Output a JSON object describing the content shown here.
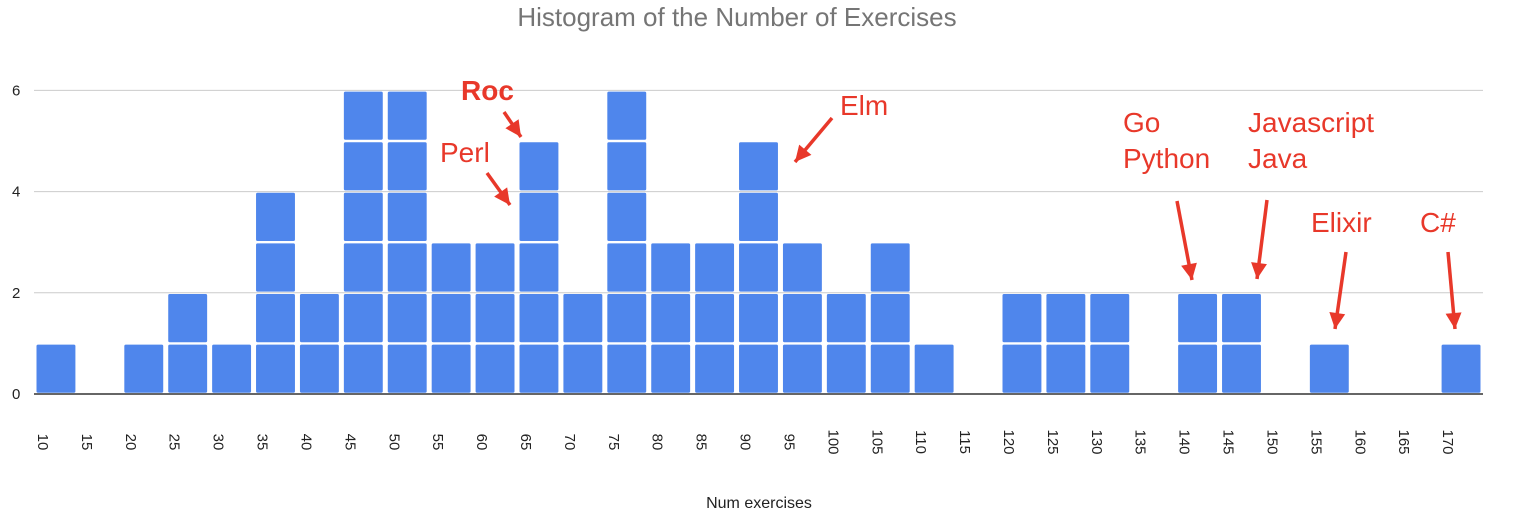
{
  "chart_data": {
    "type": "bar",
    "title": "Histogram of the Number of Exercises",
    "xlabel": "Num exercises",
    "ylabel": "",
    "bin_width": 5,
    "xlim": [
      10,
      170
    ],
    "ylim": [
      0,
      6.5
    ],
    "y_ticks": [
      "0",
      "2",
      "4",
      "6"
    ],
    "x_ticks": [
      "10",
      "15",
      "20",
      "25",
      "30",
      "35",
      "40",
      "45",
      "50",
      "55",
      "60",
      "65",
      "70",
      "75",
      "80",
      "85",
      "90",
      "95",
      "100",
      "105",
      "110",
      "115",
      "120",
      "125",
      "130",
      "135",
      "140",
      "145",
      "150",
      "155",
      "160",
      "165",
      "170"
    ],
    "bins": [
      {
        "start": 10,
        "count": 1
      },
      {
        "start": 15,
        "count": 0
      },
      {
        "start": 20,
        "count": 1
      },
      {
        "start": 25,
        "count": 2
      },
      {
        "start": 30,
        "count": 1
      },
      {
        "start": 35,
        "count": 4
      },
      {
        "start": 40,
        "count": 2
      },
      {
        "start": 45,
        "count": 6
      },
      {
        "start": 50,
        "count": 6
      },
      {
        "start": 55,
        "count": 3
      },
      {
        "start": 60,
        "count": 3
      },
      {
        "start": 65,
        "count": 5
      },
      {
        "start": 70,
        "count": 2
      },
      {
        "start": 75,
        "count": 6
      },
      {
        "start": 80,
        "count": 3
      },
      {
        "start": 85,
        "count": 3
      },
      {
        "start": 90,
        "count": 5
      },
      {
        "start": 95,
        "count": 3
      },
      {
        "start": 100,
        "count": 2
      },
      {
        "start": 105,
        "count": 3
      },
      {
        "start": 110,
        "count": 1
      },
      {
        "start": 115,
        "count": 0
      },
      {
        "start": 120,
        "count": 2
      },
      {
        "start": 125,
        "count": 2
      },
      {
        "start": 130,
        "count": 2
      },
      {
        "start": 135,
        "count": 0
      },
      {
        "start": 140,
        "count": 2
      },
      {
        "start": 145,
        "count": 2
      },
      {
        "start": 150,
        "count": 0
      },
      {
        "start": 155,
        "count": 1
      },
      {
        "start": 160,
        "count": 0
      },
      {
        "start": 165,
        "count": 0
      },
      {
        "start": 170,
        "count": 1
      }
    ],
    "grid": true,
    "legend": "none",
    "bar_color": "#4f86ec",
    "annotations": [
      {
        "lines": [
          "Roc"
        ],
        "bold": true,
        "target_bin": 65,
        "target_count": 5
      },
      {
        "lines": [
          "Perl"
        ],
        "bold": false,
        "target_bin": 65,
        "target_count": 3.8
      },
      {
        "lines": [
          "Elm"
        ],
        "bold": false,
        "target_bin": 90,
        "target_count": 4.5
      },
      {
        "lines": [
          "Go",
          "Python"
        ],
        "bold": false,
        "target_bin": 140,
        "target_count": 2.2
      },
      {
        "lines": [
          "Javascript",
          "Java"
        ],
        "bold": false,
        "target_bin": 145,
        "target_count": 2.2
      },
      {
        "lines": [
          "Elixir"
        ],
        "bold": false,
        "target_bin": 155,
        "target_count": 1.2
      },
      {
        "lines": [
          "C#"
        ],
        "bold": false,
        "target_bin": 170,
        "target_count": 1.2
      }
    ],
    "annotation_color": "#e8382a"
  }
}
